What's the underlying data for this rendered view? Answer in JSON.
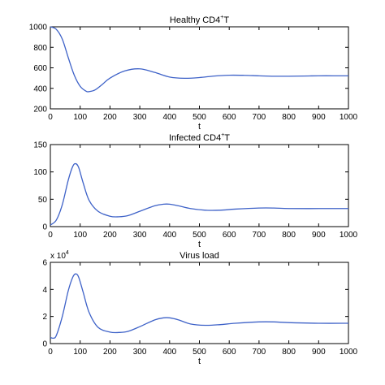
{
  "chart_data": [
    {
      "type": "line",
      "title": "Healthy CD4",
      "title_sup": "+",
      "title_suffix": "T",
      "xlabel": "t",
      "ylabel": "",
      "xlim": [
        0,
        1000
      ],
      "ylim": [
        200,
        1000
      ],
      "xticks": [
        0,
        100,
        200,
        300,
        400,
        500,
        600,
        700,
        800,
        900,
        1000
      ],
      "yticks": [
        200,
        400,
        600,
        800,
        1000
      ],
      "exponent_label": "",
      "line_color": "#3e62c8",
      "x": [
        0,
        20,
        40,
        60,
        80,
        100,
        120,
        130,
        150,
        175,
        200,
        250,
        300,
        350,
        400,
        450,
        500,
        550,
        600,
        650,
        700,
        750,
        800,
        850,
        900,
        950,
        1000
      ],
      "y": [
        1000,
        975,
        880,
        700,
        530,
        420,
        372,
        368,
        385,
        440,
        500,
        570,
        590,
        555,
        510,
        498,
        505,
        520,
        528,
        527,
        522,
        518,
        518,
        520,
        522,
        522,
        522
      ]
    },
    {
      "type": "line",
      "title": "Infected CD4",
      "title_sup": "+",
      "title_suffix": "T",
      "xlabel": "t",
      "ylabel": "",
      "xlim": [
        0,
        1000
      ],
      "ylim": [
        0,
        150
      ],
      "xticks": [
        0,
        100,
        200,
        300,
        400,
        500,
        600,
        700,
        800,
        900,
        1000
      ],
      "yticks": [
        0,
        50,
        100,
        150
      ],
      "exponent_label": "",
      "line_color": "#3e62c8",
      "x": [
        0,
        20,
        40,
        60,
        75,
        85,
        95,
        110,
        130,
        160,
        200,
        230,
        260,
        300,
        350,
        380,
        400,
        430,
        470,
        520,
        570,
        620,
        700,
        750,
        800,
        900,
        1000
      ],
      "y": [
        3,
        12,
        40,
        85,
        110,
        115,
        108,
        80,
        48,
        28,
        19,
        18,
        20,
        28,
        38,
        41,
        41,
        38,
        33,
        30,
        30,
        32,
        34,
        34,
        33,
        33,
        33
      ]
    },
    {
      "type": "line",
      "title": "Virus load",
      "title_sup": "",
      "title_suffix": "",
      "xlabel": "t",
      "ylabel": "",
      "xlim": [
        0,
        1000
      ],
      "ylim": [
        0,
        6
      ],
      "xticks": [
        0,
        100,
        200,
        300,
        400,
        500,
        600,
        700,
        800,
        900,
        1000
      ],
      "yticks": [
        0,
        2,
        4,
        6
      ],
      "exponent_label": "x 10",
      "exponent_power": "4",
      "line_color": "#3e62c8",
      "x": [
        0,
        10,
        20,
        40,
        60,
        75,
        85,
        95,
        110,
        130,
        160,
        200,
        230,
        260,
        300,
        350,
        380,
        400,
        430,
        470,
        520,
        570,
        620,
        700,
        750,
        800,
        900,
        1000
      ],
      "y": [
        0.45,
        0.4,
        0.6,
        2.0,
        3.9,
        4.9,
        5.15,
        4.9,
        3.8,
        2.3,
        1.2,
        0.85,
        0.82,
        0.9,
        1.25,
        1.75,
        1.9,
        1.9,
        1.75,
        1.45,
        1.35,
        1.4,
        1.5,
        1.6,
        1.6,
        1.55,
        1.5,
        1.5
      ]
    }
  ]
}
